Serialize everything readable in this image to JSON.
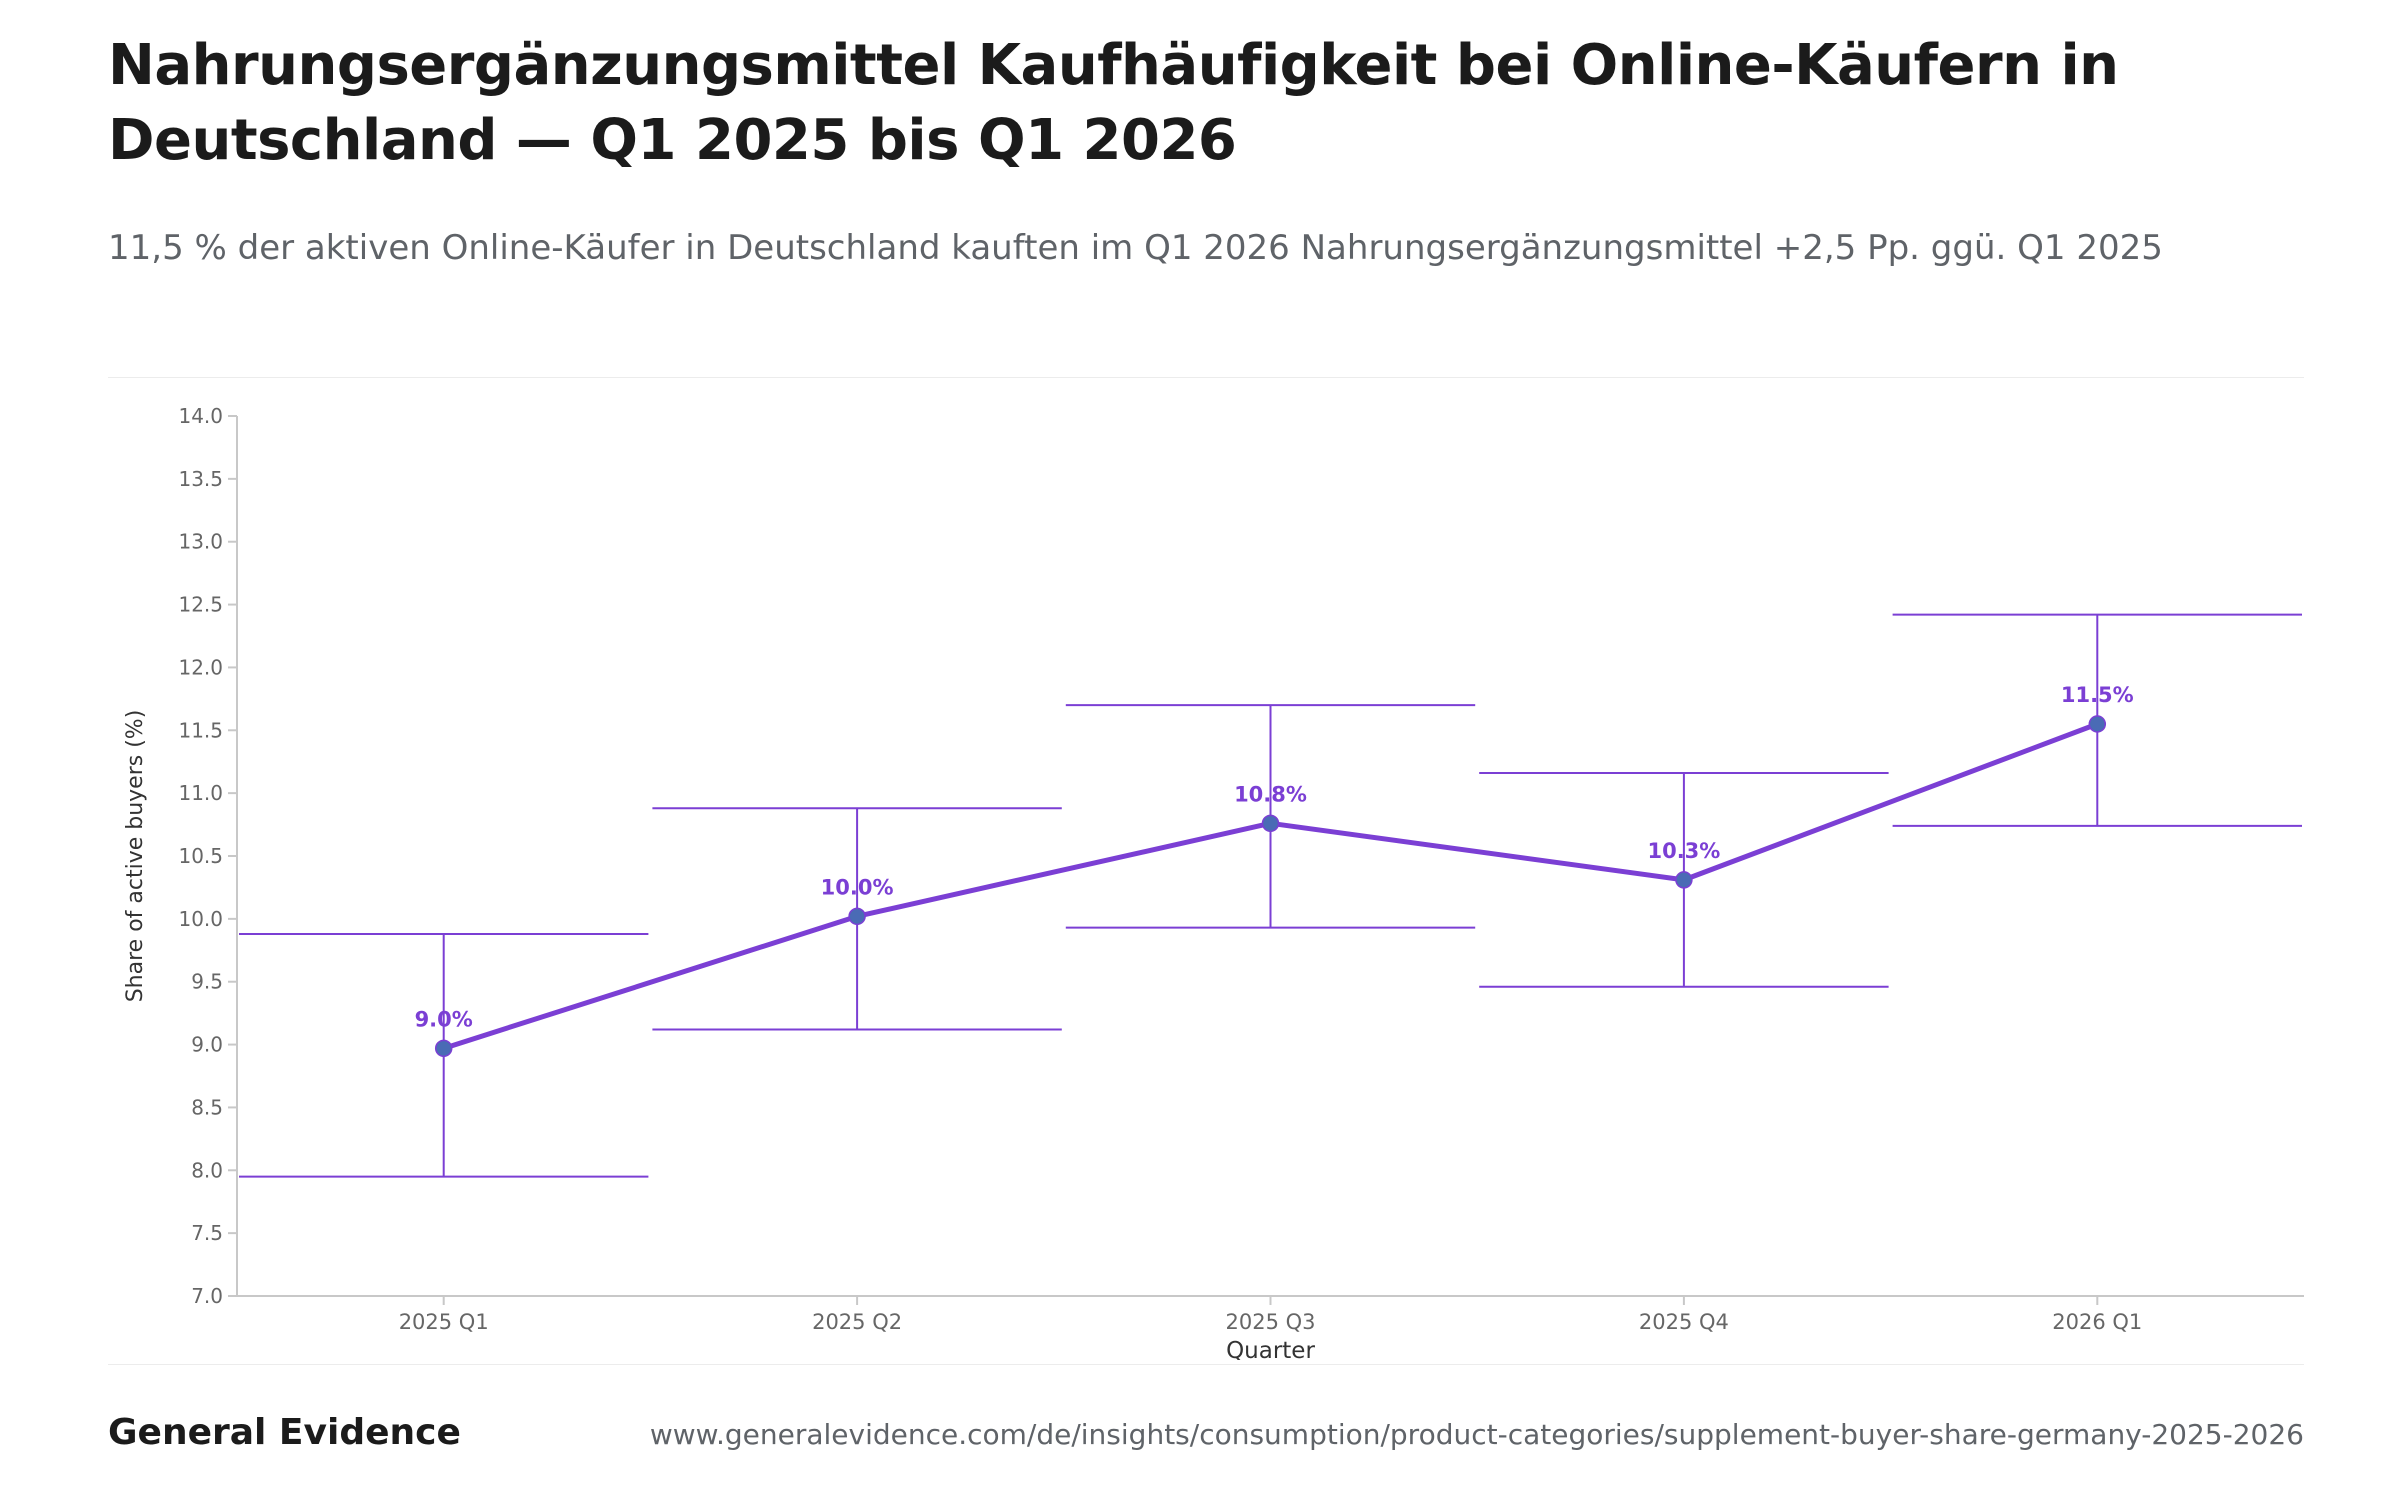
{
  "header": {
    "title": "Nahrungsergänzungsmittel Kaufhäufigkeit bei Online-Käufern in Deutschland — Q1 2025 bis Q1 2026",
    "subtitle": "11,5 % der aktiven Online-Käufer in Deutschland kauften im Q1 2026 Nahrungsergänzungsmittel +2,5 Pp. ggü. Q1 2025"
  },
  "footer": {
    "brand": "General Evidence",
    "url": "www.generalevidence.com/de/insights/consumption/product-categories/supplement-buyer-share-germany-2025-2026"
  },
  "colors": {
    "line": "#7b3fd4",
    "point": "#4a6bb5",
    "label": "#7b3fd4",
    "axis": "#c8c8c8",
    "tick_text": "#666666"
  },
  "chart_data": {
    "type": "line",
    "xlabel": "Quarter",
    "ylabel": "Share of active buyers (%)",
    "ylim": [
      7.0,
      14.0
    ],
    "yticks": [
      "7.0",
      "7.5",
      "8.0",
      "8.5",
      "9.0",
      "9.5",
      "10.0",
      "10.5",
      "11.0",
      "11.5",
      "12.0",
      "12.5",
      "13.0",
      "13.5",
      "14.0"
    ],
    "categories": [
      "2025 Q1",
      "2025 Q2",
      "2025 Q3",
      "2025 Q4",
      "2026 Q1"
    ],
    "values": [
      8.97,
      10.02,
      10.76,
      10.31,
      11.55
    ],
    "value_labels": [
      "9.0%",
      "10.0%",
      "10.8%",
      "10.3%",
      "11.5%"
    ],
    "error_low": [
      7.95,
      9.12,
      9.93,
      9.46,
      10.74
    ],
    "error_high": [
      9.88,
      10.88,
      11.7,
      11.16,
      12.42
    ],
    "grid": false,
    "legend": "none"
  }
}
